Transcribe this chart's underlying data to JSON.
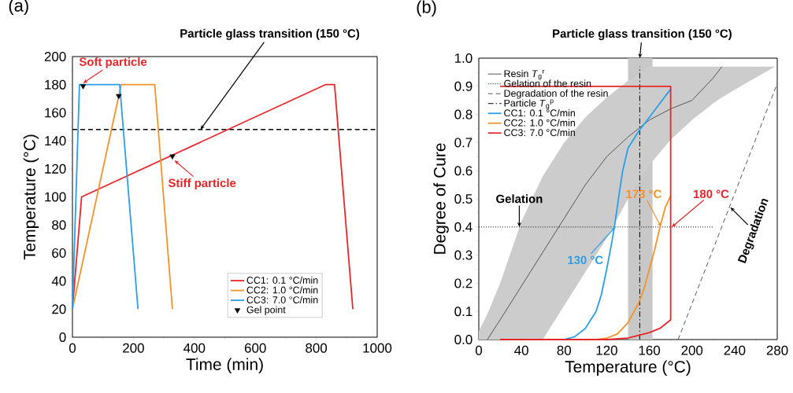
{
  "chart_data": [
    {
      "type": "line",
      "title": "(a)",
      "xlabel": "Time (min)",
      "ylabel": "Temperature (°C)",
      "xlim": [
        0,
        1000
      ],
      "xticks": [
        0,
        200,
        400,
        600,
        800,
        1000
      ],
      "ylim": [
        0,
        200
      ],
      "yticks": [
        0,
        20,
        40,
        60,
        80,
        100,
        120,
        140,
        160,
        180,
        200
      ],
      "legend": "bottom right",
      "series": [
        {
          "name": "CC1: 0.1 °C/min",
          "color": "#e8262a",
          "x": [
            0,
            30,
            830,
            860,
            920
          ],
          "values": [
            20,
            100,
            180,
            180,
            20
          ]
        },
        {
          "name": "CC2: 1.0 °C/min",
          "color": "#f5922a",
          "x": [
            0,
            160,
            270,
            328
          ],
          "values": [
            20,
            180,
            180,
            20
          ]
        },
        {
          "name": "CC3: 7.0 °C/min",
          "color": "#2a9fe8",
          "x": [
            0,
            23,
            155,
            215
          ],
          "values": [
            20,
            180,
            180,
            20
          ]
        },
        {
          "name": "Gel point",
          "type": "scatter",
          "color": "#000000",
          "marker": "triangle",
          "x": [
            35,
            152,
            328
          ],
          "values": [
            179,
            172,
            129
          ]
        }
      ],
      "ref_lines": [
        {
          "axis": "y",
          "value": 148,
          "color": "#000000",
          "line_style": "dashed"
        }
      ],
      "annotations": [
        {
          "text": "Particle glass transition (150 °C)",
          "x": 420,
          "y": 148
        },
        {
          "text": "Soft particle",
          "x": 35,
          "y": 181
        },
        {
          "text": "Stiff particle",
          "x": 335,
          "y": 126
        }
      ]
    },
    {
      "type": "line",
      "title": "(b)",
      "xlabel": "Temperature (°C)",
      "ylabel": "Degree of Cure",
      "xlim": [
        0,
        280
      ],
      "xticks": [
        0,
        40,
        80,
        120,
        160,
        200,
        240,
        280
      ],
      "ylim": [
        0,
        1.0
      ],
      "yticks": [
        {
          "value": 0,
          "label": "0.0"
        },
        0.1,
        0.2,
        0.3,
        0.4,
        0.5,
        0.6,
        0.7,
        0.8,
        0.9,
        {
          "value": 1.0,
          "label": "1.0"
        }
      ],
      "legend": "top left",
      "series": [
        {
          "name": "Resin *T*$_{g}$$^{r}$",
          "color": "#555555",
          "x": [
            0,
            8,
            20,
            40,
            60,
            80,
            100,
            120,
            140,
            160,
            180,
            200,
            220,
            228,
            250,
            278
          ],
          "values": [
            null,
            0,
            0.07,
            0.19,
            0.31,
            0.43,
            0.55,
            0.65,
            0.72,
            0.78,
            0.82,
            0.85,
            0.93,
            0.97,
            null,
            null
          ],
          "lower": [
            0,
            0,
            0,
            0,
            0,
            0.12,
            0.24,
            0.36,
            0.5,
            0.62,
            0.71,
            0.78,
            0.84,
            0.86,
            0.91,
            0.97
          ],
          "upper": [
            0.03,
            0.09,
            0.2,
            0.42,
            0.58,
            0.7,
            0.79,
            0.86,
            0.92,
            0.97,
            0.97,
            0.97,
            0.97,
            0.97,
            0.97,
            0.97
          ]
        },
        {
          "name": "Gelation of the resin",
          "color": "#000000",
          "line_style": "dotted",
          "x": [
            0,
            220
          ],
          "values": [
            0.4,
            0.4
          ]
        },
        {
          "name": "Degradation of the resin",
          "color": "#555555",
          "line_style": "dashed",
          "x": [
            187,
            280
          ],
          "values": [
            0,
            0.91
          ]
        },
        {
          "name": "Particle *T*$_{g}$$^{p}$",
          "color": "#000000",
          "line_style": "dashdot",
          "x": [
            151,
            151
          ],
          "values": [
            0,
            0.97
          ]
        },
        {
          "name": "CC1: 0.1 °C/min",
          "color": "#2a9fe8",
          "x": [
            20,
            80,
            90,
            100,
            110,
            115,
            120,
            125,
            128,
            131,
            135,
            140,
            150,
            160,
            170,
            180
          ],
          "values": [
            0,
            0,
            0.01,
            0.04,
            0.1,
            0.16,
            0.25,
            0.35,
            0.42,
            0.5,
            0.6,
            0.68,
            0.74,
            0.79,
            0.84,
            0.89
          ]
        },
        {
          "name": "CC2: 1.0 °C/min",
          "color": "#f5922a",
          "x": [
            20,
            110,
            120,
            130,
            140,
            150,
            155,
            160,
            165,
            170,
            175,
            180
          ],
          "values": [
            0,
            0,
            0.005,
            0.02,
            0.06,
            0.13,
            0.18,
            0.25,
            0.32,
            0.4,
            0.47,
            0.51
          ]
        },
        {
          "name": "CC3: 7.0 °C/min",
          "color": "#e8262a",
          "x": [
            20,
            120,
            140,
            150,
            160,
            170,
            180,
            180,
            20
          ],
          "values": [
            0,
            0,
            0.005,
            0.015,
            0.025,
            0.04,
            0.07,
            0.9,
            0.9
          ]
        }
      ],
      "bands": [
        {
          "axis": "x",
          "from": 140,
          "to": 163,
          "color": "#c8c8c8"
        }
      ],
      "annotations": [
        {
          "text": "Particle glass transition (150 °C)",
          "x": 151,
          "y": 1.0
        },
        {
          "text": "Gelation",
          "x": 38,
          "y": 0.4
        },
        {
          "text": "130 °C",
          "x": 128,
          "y": 0.4
        },
        {
          "text": "173 °C",
          "x": 171,
          "y": 0.4
        },
        {
          "text": "180 °C",
          "x": 181,
          "y": 0.4
        },
        {
          "text": "Degradation",
          "x": 236,
          "y": 0.47
        }
      ]
    }
  ]
}
